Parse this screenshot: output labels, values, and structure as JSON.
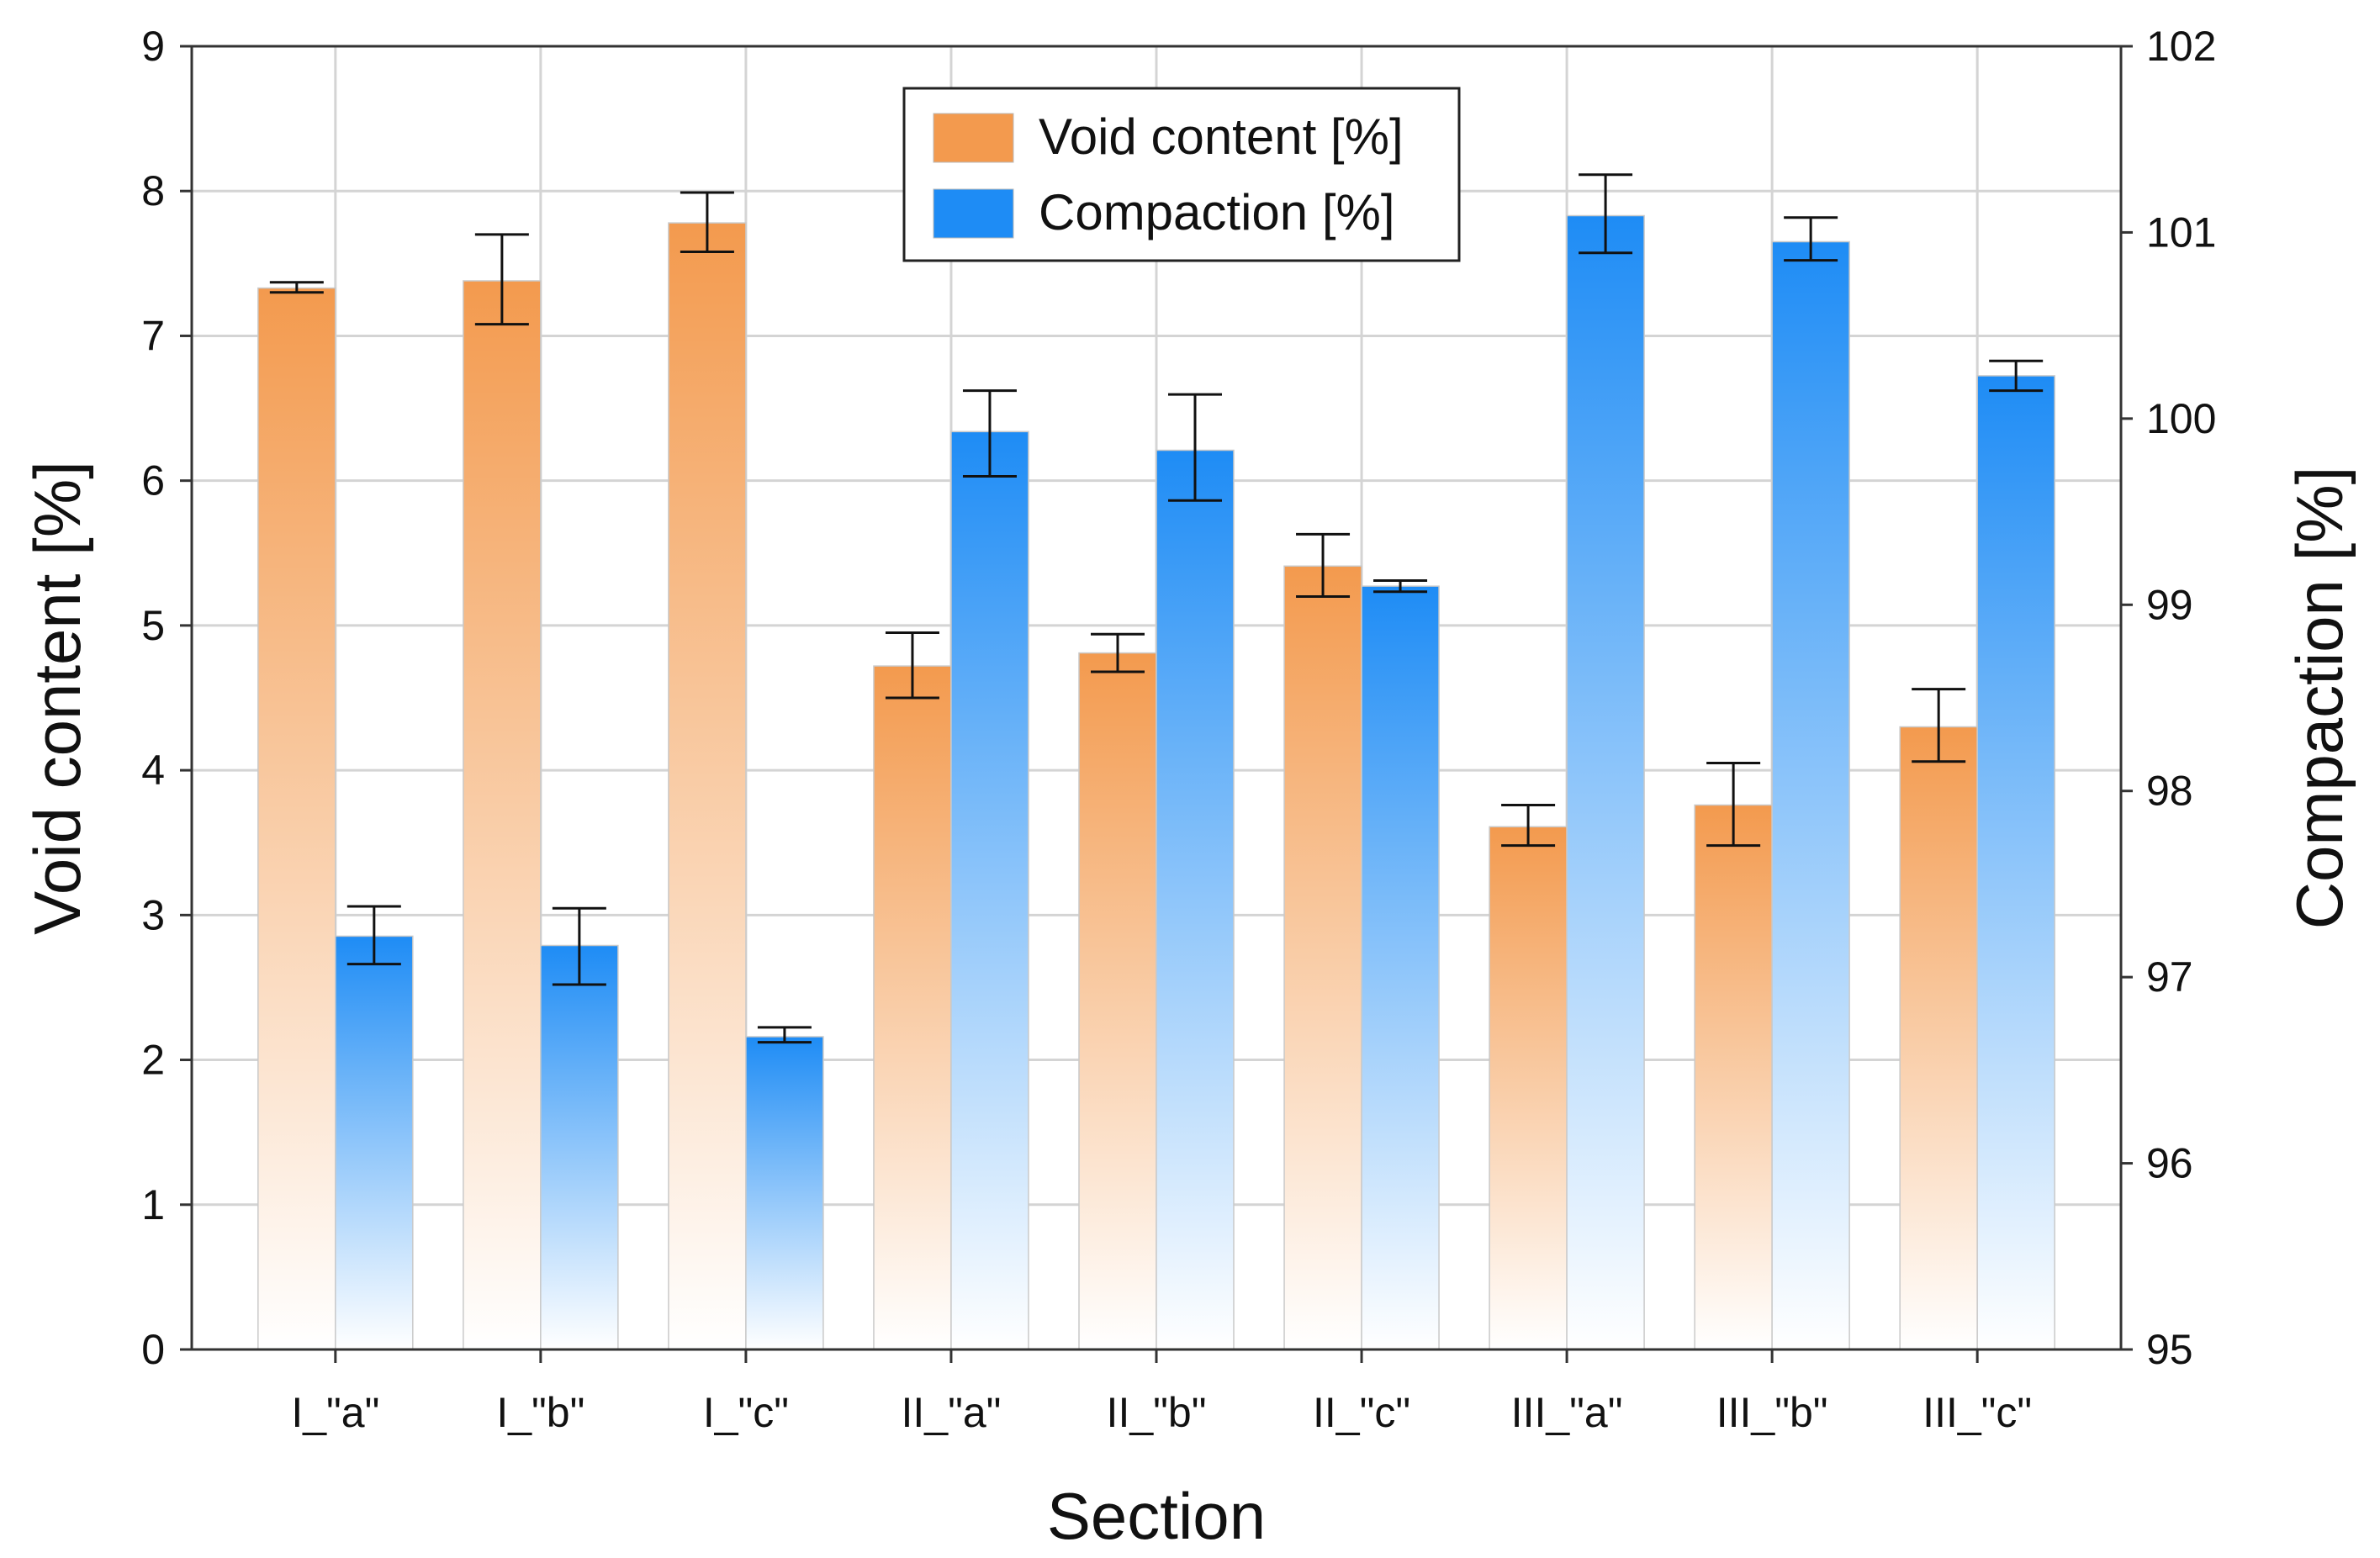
{
  "chart_data": {
    "type": "bar",
    "xlabel": "Section",
    "ylabel": "Void content [%]",
    "y2label": "Compaction [%]",
    "categories": [
      "I_\"a\"",
      "I_\"b\"",
      "I_\"c\"",
      "II_\"a\"",
      "II_\"b\"",
      "II_\"c\"",
      "III_\"a\"",
      "III_\"b\"",
      "III_\"c\""
    ],
    "ylim": [
      0,
      9
    ],
    "y2lim": [
      95,
      102
    ],
    "yticks": [
      "0",
      "1",
      "2",
      "3",
      "4",
      "5",
      "6",
      "7",
      "8",
      "9"
    ],
    "y2ticks": [
      "95",
      "96",
      "97",
      "98",
      "99",
      "100",
      "101",
      "102"
    ],
    "grid": true,
    "legend_position": "top-center",
    "series": [
      {
        "name": "Void content [%]",
        "axis": "left",
        "color": "#f39a4e",
        "values": [
          7.33,
          7.38,
          7.78,
          4.72,
          4.81,
          5.41,
          3.61,
          3.76,
          4.3
        ],
        "err_low": [
          7.3,
          7.08,
          7.58,
          4.5,
          4.68,
          5.2,
          3.48,
          3.48,
          4.06
        ],
        "err_high": [
          7.37,
          7.7,
          7.99,
          4.95,
          4.94,
          5.63,
          3.76,
          4.05,
          4.56
        ]
      },
      {
        "name": "Compaction [%]",
        "axis": "right",
        "color": "#1e8cf5",
        "values": [
          97.22,
          97.17,
          96.68,
          99.93,
          99.83,
          99.1,
          101.09,
          100.95,
          100.23
        ],
        "err_low": [
          97.07,
          96.96,
          96.65,
          99.69,
          99.56,
          99.07,
          100.89,
          100.85,
          100.15
        ],
        "err_high": [
          97.38,
          97.37,
          96.73,
          100.15,
          100.13,
          99.13,
          101.31,
          101.08,
          100.31
        ]
      }
    ]
  }
}
